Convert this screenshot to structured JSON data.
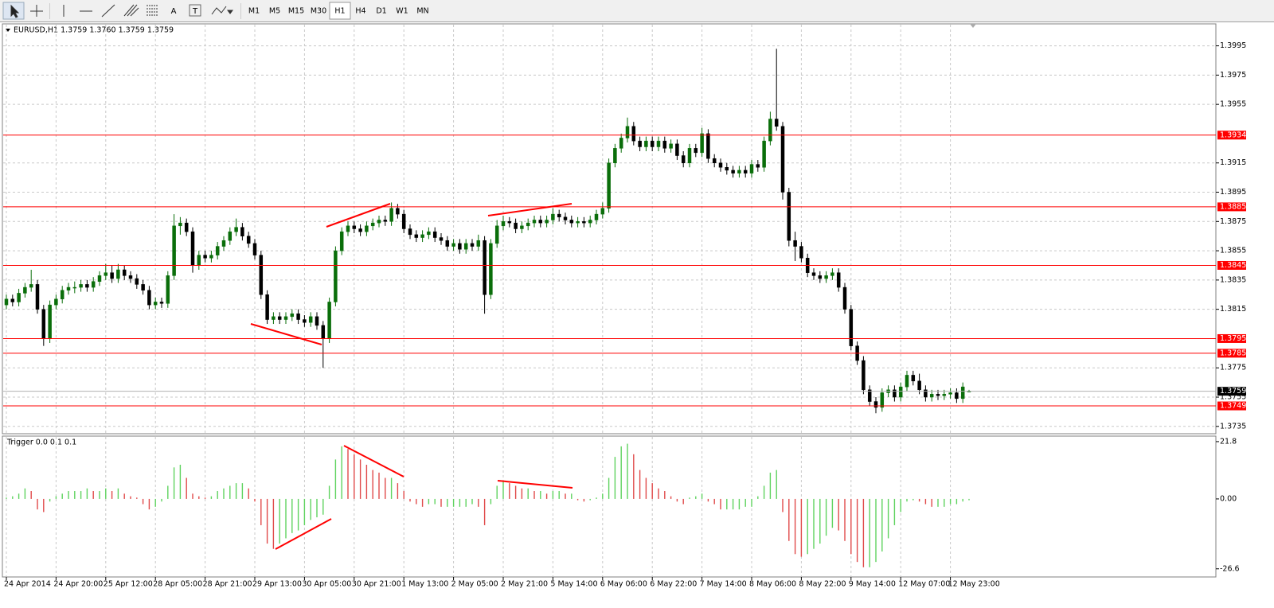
{
  "toolbar": {
    "timeframes": [
      "M1",
      "M5",
      "M15",
      "M30",
      "H1",
      "H4",
      "D1",
      "W1",
      "MN"
    ],
    "tool_labels": [
      "A",
      "T"
    ]
  },
  "chart_data": [
    {
      "type": "candlestick",
      "title": "EURUSD,H1 1.3759 1.3760 1.3759 1.3759",
      "up_color": "#0a6e0a",
      "down_color": "#000000",
      "grid": true,
      "ylim": [
        1.373,
        1.401
      ],
      "yticks": [
        1.3995,
        1.3975,
        1.3955,
        1.3915,
        1.3895,
        1.3875,
        1.3855,
        1.3835,
        1.3815,
        1.3775,
        1.3755,
        1.3735
      ],
      "xticks": [
        {
          "value": 0,
          "label": "24 Apr 2014"
        },
        {
          "value": 8,
          "label": "24 Apr 20:00"
        },
        {
          "value": 16,
          "label": "25 Apr 12:00"
        },
        {
          "value": 24,
          "label": "28 Apr 05:00"
        },
        {
          "value": 32,
          "label": "28 Apr 21:00"
        },
        {
          "value": 40,
          "label": "29 Apr 13:00"
        },
        {
          "value": 48,
          "label": "30 Apr 05:00"
        },
        {
          "value": 56,
          "label": "30 Apr 21:00"
        },
        {
          "value": 64,
          "label": "1 May 13:00"
        },
        {
          "value": 72,
          "label": "2 May 05:00"
        },
        {
          "value": 80,
          "label": "2 May 21:00"
        },
        {
          "value": 88,
          "label": "5 May 14:00"
        },
        {
          "value": 96,
          "label": "6 May 06:00"
        },
        {
          "value": 104,
          "label": "6 May 22:00"
        },
        {
          "value": 112,
          "label": "7 May 14:00"
        },
        {
          "value": 120,
          "label": "8 May 06:00"
        },
        {
          "value": 128,
          "label": "8 May 22:00"
        },
        {
          "value": 136,
          "label": "9 May 14:00"
        },
        {
          "value": 144,
          "label": "12 May 07:00"
        },
        {
          "value": 152,
          "label": "12 May 23:00"
        }
      ],
      "levels": [
        1.3934,
        1.3885,
        1.3845,
        1.3795,
        1.3785,
        1.3749
      ],
      "level_color": "#ff0000",
      "last_price": 1.3759,
      "ohlc": [
        [
          1.3818,
          1.3825,
          1.3815,
          1.3822
        ],
        [
          1.3822,
          1.3825,
          1.3817,
          1.382
        ],
        [
          1.382,
          1.3829,
          1.3817,
          1.3826
        ],
        [
          1.3826,
          1.3833,
          1.3823,
          1.383
        ],
        [
          1.383,
          1.3842,
          1.3827,
          1.3832
        ],
        [
          1.3832,
          1.3835,
          1.3812,
          1.3815
        ],
        [
          1.3815,
          1.3818,
          1.379,
          1.3795
        ],
        [
          1.3795,
          1.3821,
          1.3792,
          1.3818
        ],
        [
          1.3818,
          1.3825,
          1.3815,
          1.3822
        ],
        [
          1.3822,
          1.3831,
          1.3819,
          1.3828
        ],
        [
          1.3828,
          1.3833,
          1.3825,
          1.383
        ],
        [
          1.383,
          1.3834,
          1.3826,
          1.383
        ],
        [
          1.383,
          1.3835,
          1.3827,
          1.3832
        ],
        [
          1.3832,
          1.3835,
          1.3827,
          1.383
        ],
        [
          1.383,
          1.3837,
          1.3827,
          1.3834
        ],
        [
          1.3834,
          1.3841,
          1.3831,
          1.3838
        ],
        [
          1.3838,
          1.3846,
          1.3835,
          1.384
        ],
        [
          1.384,
          1.3845,
          1.3833,
          1.3836
        ],
        [
          1.3836,
          1.3846,
          1.3833,
          1.3842
        ],
        [
          1.3842,
          1.3845,
          1.3835,
          1.3838
        ],
        [
          1.3838,
          1.3841,
          1.3833,
          1.3836
        ],
        [
          1.3836,
          1.3839,
          1.3829,
          1.3832
        ],
        [
          1.3832,
          1.3835,
          1.3825,
          1.3828
        ],
        [
          1.3828,
          1.3831,
          1.3815,
          1.3818
        ],
        [
          1.3818,
          1.3823,
          1.3815,
          1.382
        ],
        [
          1.382,
          1.3823,
          1.3816,
          1.3819
        ],
        [
          1.3819,
          1.3841,
          1.3816,
          1.3838
        ],
        [
          1.3838,
          1.388,
          1.3835,
          1.3872
        ],
        [
          1.3872,
          1.3878,
          1.3866,
          1.3874
        ],
        [
          1.3874,
          1.3877,
          1.3865,
          1.3868
        ],
        [
          1.3868,
          1.3871,
          1.384,
          1.3845
        ],
        [
          1.3845,
          1.3855,
          1.3842,
          1.3852
        ],
        [
          1.3852,
          1.3855,
          1.3847,
          1.385
        ],
        [
          1.385,
          1.3855,
          1.3847,
          1.3852
        ],
        [
          1.3852,
          1.3861,
          1.3849,
          1.3858
        ],
        [
          1.3858,
          1.3865,
          1.3855,
          1.3862
        ],
        [
          1.3862,
          1.3871,
          1.3859,
          1.3868
        ],
        [
          1.3868,
          1.3877,
          1.3865,
          1.3871
        ],
        [
          1.3871,
          1.3874,
          1.3862,
          1.3865
        ],
        [
          1.3865,
          1.3868,
          1.3857,
          1.386
        ],
        [
          1.386,
          1.3863,
          1.3849,
          1.3852
        ],
        [
          1.3852,
          1.3855,
          1.3822,
          1.3825
        ],
        [
          1.3825,
          1.3828,
          1.3805,
          1.3808
        ],
        [
          1.3808,
          1.3813,
          1.3805,
          1.381
        ],
        [
          1.381,
          1.3813,
          1.3805,
          1.3808
        ],
        [
          1.3808,
          1.3813,
          1.3805,
          1.381
        ],
        [
          1.381,
          1.3815,
          1.3807,
          1.3812
        ],
        [
          1.3812,
          1.3815,
          1.3805,
          1.3808
        ],
        [
          1.3808,
          1.3811,
          1.3803,
          1.3806
        ],
        [
          1.3806,
          1.3813,
          1.3803,
          1.381
        ],
        [
          1.381,
          1.3813,
          1.3801,
          1.3804
        ],
        [
          1.3804,
          1.3807,
          1.3775,
          1.3795
        ],
        [
          1.3795,
          1.3823,
          1.3792,
          1.382
        ],
        [
          1.382,
          1.3858,
          1.3817,
          1.3855
        ],
        [
          1.3855,
          1.3871,
          1.3852,
          1.3868
        ],
        [
          1.3868,
          1.3875,
          1.3865,
          1.3872
        ],
        [
          1.3872,
          1.3875,
          1.3867,
          1.387
        ],
        [
          1.387,
          1.3873,
          1.3865,
          1.3868
        ],
        [
          1.3868,
          1.3875,
          1.3865,
          1.3872
        ],
        [
          1.3872,
          1.3877,
          1.3869,
          1.3874
        ],
        [
          1.3874,
          1.3879,
          1.3871,
          1.3876
        ],
        [
          1.3876,
          1.3879,
          1.3872,
          1.3875
        ],
        [
          1.3875,
          1.3888,
          1.3872,
          1.3884
        ],
        [
          1.3884,
          1.3887,
          1.3877,
          1.388
        ],
        [
          1.388,
          1.3883,
          1.3867,
          1.387
        ],
        [
          1.387,
          1.3873,
          1.3863,
          1.3866
        ],
        [
          1.3866,
          1.3869,
          1.3861,
          1.3864
        ],
        [
          1.3864,
          1.3869,
          1.3861,
          1.3866
        ],
        [
          1.3866,
          1.3871,
          1.3863,
          1.3868
        ],
        [
          1.3868,
          1.3871,
          1.3861,
          1.3864
        ],
        [
          1.3864,
          1.3867,
          1.3859,
          1.3862
        ],
        [
          1.3862,
          1.3865,
          1.3855,
          1.3858
        ],
        [
          1.3858,
          1.3863,
          1.3855,
          1.386
        ],
        [
          1.386,
          1.3863,
          1.3853,
          1.3856
        ],
        [
          1.3856,
          1.3863,
          1.3853,
          1.386
        ],
        [
          1.386,
          1.3863,
          1.3855,
          1.3858
        ],
        [
          1.3858,
          1.3866,
          1.3855,
          1.3862
        ],
        [
          1.3862,
          1.3865,
          1.3812,
          1.3825
        ],
        [
          1.3825,
          1.3863,
          1.3822,
          1.386
        ],
        [
          1.386,
          1.3876,
          1.3857,
          1.3872
        ],
        [
          1.3872,
          1.3879,
          1.3869,
          1.3875
        ],
        [
          1.3875,
          1.3878,
          1.3871,
          1.3874
        ],
        [
          1.3874,
          1.3877,
          1.3867,
          1.387
        ],
        [
          1.387,
          1.3875,
          1.3867,
          1.3872
        ],
        [
          1.3872,
          1.3877,
          1.3869,
          1.3874
        ],
        [
          1.3874,
          1.3879,
          1.3871,
          1.3876
        ],
        [
          1.3876,
          1.3879,
          1.3871,
          1.3874
        ],
        [
          1.3874,
          1.3879,
          1.3871,
          1.3876
        ],
        [
          1.3876,
          1.3884,
          1.3873,
          1.388
        ],
        [
          1.388,
          1.3883,
          1.3875,
          1.3878
        ],
        [
          1.3878,
          1.3881,
          1.3873,
          1.3876
        ],
        [
          1.3876,
          1.3879,
          1.3871,
          1.3874
        ],
        [
          1.3874,
          1.3878,
          1.3871,
          1.3875
        ],
        [
          1.3875,
          1.3878,
          1.3871,
          1.3874
        ],
        [
          1.3874,
          1.3879,
          1.3871,
          1.3876
        ],
        [
          1.3876,
          1.3883,
          1.3873,
          1.388
        ],
        [
          1.388,
          1.3888,
          1.3877,
          1.3884
        ],
        [
          1.3884,
          1.3918,
          1.3881,
          1.3915
        ],
        [
          1.3915,
          1.3928,
          1.3912,
          1.3925
        ],
        [
          1.3925,
          1.3935,
          1.3922,
          1.3932
        ],
        [
          1.3932,
          1.3946,
          1.3929,
          1.394
        ],
        [
          1.394,
          1.3943,
          1.3927,
          1.393
        ],
        [
          1.393,
          1.3933,
          1.3923,
          1.3926
        ],
        [
          1.3926,
          1.3933,
          1.3923,
          1.393
        ],
        [
          1.393,
          1.3933,
          1.3923,
          1.3926
        ],
        [
          1.3926,
          1.3933,
          1.3923,
          1.393
        ],
        [
          1.393,
          1.3933,
          1.3922,
          1.3925
        ],
        [
          1.3925,
          1.3931,
          1.3922,
          1.3928
        ],
        [
          1.3928,
          1.3931,
          1.3917,
          1.392
        ],
        [
          1.392,
          1.3923,
          1.3912,
          1.3915
        ],
        [
          1.3915,
          1.3928,
          1.3912,
          1.3925
        ],
        [
          1.3925,
          1.3928,
          1.3919,
          1.3922
        ],
        [
          1.3922,
          1.3939,
          1.3919,
          1.3935
        ],
        [
          1.3935,
          1.3938,
          1.3915,
          1.3918
        ],
        [
          1.3918,
          1.3921,
          1.3912,
          1.3915
        ],
        [
          1.3915,
          1.3918,
          1.3909,
          1.3912
        ],
        [
          1.3912,
          1.3915,
          1.3907,
          1.391
        ],
        [
          1.391,
          1.3913,
          1.3905,
          1.3908
        ],
        [
          1.3908,
          1.3913,
          1.3905,
          1.391
        ],
        [
          1.391,
          1.3913,
          1.3905,
          1.3908
        ],
        [
          1.3908,
          1.3917,
          1.3905,
          1.3914
        ],
        [
          1.3914,
          1.3917,
          1.3909,
          1.3912
        ],
        [
          1.3912,
          1.3933,
          1.3909,
          1.393
        ],
        [
          1.393,
          1.395,
          1.3927,
          1.3945
        ],
        [
          1.3945,
          1.3993,
          1.3937,
          1.394
        ],
        [
          1.394,
          1.3943,
          1.389,
          1.3895
        ],
        [
          1.3895,
          1.3898,
          1.3858,
          1.3862
        ],
        [
          1.3862,
          1.3868,
          1.3848,
          1.3858
        ],
        [
          1.3858,
          1.3861,
          1.3847,
          1.385
        ],
        [
          1.385,
          1.3853,
          1.3837,
          1.384
        ],
        [
          1.384,
          1.3843,
          1.3835,
          1.3838
        ],
        [
          1.3838,
          1.3841,
          1.3833,
          1.3836
        ],
        [
          1.3836,
          1.3841,
          1.3833,
          1.3838
        ],
        [
          1.3838,
          1.3843,
          1.3835,
          1.384
        ],
        [
          1.384,
          1.3843,
          1.3827,
          1.383
        ],
        [
          1.383,
          1.3833,
          1.3812,
          1.3815
        ],
        [
          1.3815,
          1.3818,
          1.3787,
          1.379
        ],
        [
          1.379,
          1.3793,
          1.3777,
          1.378
        ],
        [
          1.378,
          1.3783,
          1.3757,
          1.376
        ],
        [
          1.376,
          1.3763,
          1.3749,
          1.3752
        ],
        [
          1.3752,
          1.3755,
          1.3744,
          1.3748
        ],
        [
          1.3748,
          1.3761,
          1.3745,
          1.3758
        ],
        [
          1.3758,
          1.3763,
          1.3755,
          1.376
        ],
        [
          1.376,
          1.3763,
          1.3752,
          1.3755
        ],
        [
          1.3755,
          1.3765,
          1.3752,
          1.3762
        ],
        [
          1.3762,
          1.3773,
          1.3759,
          1.377
        ],
        [
          1.377,
          1.3773,
          1.3763,
          1.3766
        ],
        [
          1.3766,
          1.3771,
          1.3757,
          1.376
        ],
        [
          1.376,
          1.3763,
          1.3752,
          1.3755
        ],
        [
          1.3755,
          1.376,
          1.3752,
          1.3757
        ],
        [
          1.3757,
          1.376,
          1.3753,
          1.3756
        ],
        [
          1.3756,
          1.376,
          1.3753,
          1.3757
        ],
        [
          1.3757,
          1.3761,
          1.3754,
          1.3758
        ],
        [
          1.3758,
          1.3761,
          1.3751,
          1.3754
        ],
        [
          1.3754,
          1.3765,
          1.3751,
          1.3762
        ],
        [
          1.3759,
          1.376,
          1.3759,
          1.3759
        ]
      ]
    },
    {
      "type": "histogram",
      "title": "Trigger 0.0 0.1 0.1",
      "up_color": "#5fd35f",
      "down_color": "#e04a4a",
      "ylim": [
        -29.7,
        23.9
      ],
      "yticks": [
        21.8,
        {
          "value": 0,
          "label": "0.00"
        },
        -26.6
      ],
      "values": [
        0.5,
        1,
        2,
        4,
        3,
        -4,
        -5,
        -1,
        1,
        2,
        3,
        3,
        3,
        4,
        3,
        3,
        4,
        3,
        4,
        2,
        1,
        0.5,
        -2,
        -4,
        -3,
        -1,
        5,
        12,
        13,
        8,
        2,
        1,
        0.5,
        1,
        3,
        4,
        5,
        6,
        6,
        4,
        -1,
        -10,
        -17,
        -19,
        -17,
        -15,
        -13,
        -12,
        -10,
        -8,
        -7,
        -6,
        5,
        15,
        20,
        19,
        17,
        15,
        13,
        11,
        10,
        8,
        8,
        6,
        3,
        -1,
        -2,
        -3,
        -2,
        -2,
        -3,
        -3,
        -3,
        -3,
        -3,
        -2,
        -3,
        -10,
        -2,
        5,
        7,
        6,
        5,
        4,
        4,
        3,
        3,
        2,
        3,
        3,
        2,
        2,
        -0.5,
        -1,
        -0.5,
        0.5,
        2,
        8,
        16,
        20,
        21,
        17,
        11,
        8,
        6,
        4,
        3,
        1,
        -1,
        -2,
        0.5,
        1,
        2,
        -1,
        -2,
        -4,
        -4,
        -4,
        -4,
        -3,
        -3,
        1,
        5,
        10,
        11,
        -5,
        -16,
        -21,
        -22,
        -21,
        -19,
        -17,
        -14,
        -11,
        -12,
        -16,
        -21,
        -24,
        -26,
        -26,
        -24,
        -20,
        -15,
        -10,
        -5,
        -1,
        -0.5,
        -1,
        -2,
        -3,
        -3,
        -3,
        -2,
        -2,
        -1,
        -0.5
      ]
    }
  ]
}
